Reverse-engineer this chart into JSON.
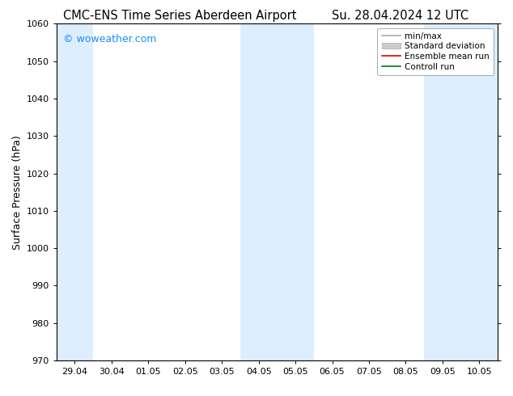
{
  "title_left": "CMC-ENS Time Series Aberdeen Airport",
  "title_right": "Su. 28.04.2024 12 UTC",
  "ylabel": "Surface Pressure (hPa)",
  "ylim": [
    970,
    1060
  ],
  "yticks": [
    970,
    980,
    990,
    1000,
    1010,
    1020,
    1030,
    1040,
    1050,
    1060
  ],
  "xtick_labels": [
    "29.04",
    "30.04",
    "01.05",
    "02.05",
    "03.05",
    "04.05",
    "05.05",
    "06.05",
    "07.05",
    "08.05",
    "09.05",
    "10.05"
  ],
  "watermark": "© woweather.com",
  "watermark_color": "#1a8cff",
  "bg_color": "#ffffff",
  "plot_bg_color": "#ffffff",
  "shaded_color": "#ddeeff",
  "shade_ranges": [
    [
      -0.5,
      0.5
    ],
    [
      4.5,
      6.5
    ],
    [
      9.5,
      11.5
    ]
  ],
  "legend_items": [
    {
      "label": "min/max",
      "color": "#aaaaaa",
      "lw": 1.2
    },
    {
      "label": "Standard deviation",
      "color": "#cccccc",
      "lw": 5
    },
    {
      "label": "Ensemble mean run",
      "color": "#dd0000",
      "lw": 1.2
    },
    {
      "label": "Controll run",
      "color": "#007700",
      "lw": 1.2
    }
  ],
  "font_size_title": 10.5,
  "font_size_axis_label": 9,
  "font_size_ticks": 8,
  "font_size_legend": 7.5,
  "font_size_watermark": 9
}
